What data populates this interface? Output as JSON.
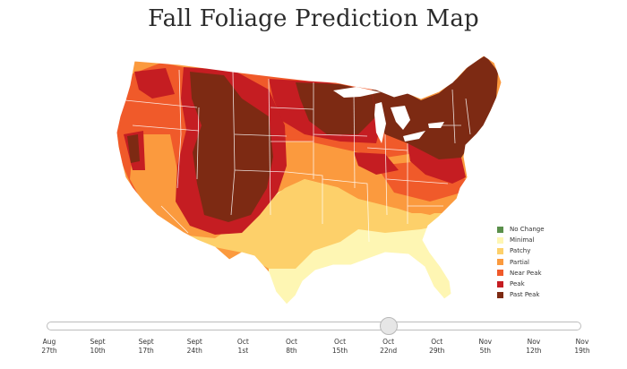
{
  "title": "Fall Foliage Prediction Map",
  "legend": [
    {
      "label": "No Change",
      "color": "#5a8f4b"
    },
    {
      "label": "Minimal",
      "color": "#fef6b3"
    },
    {
      "label": "Patchy",
      "color": "#fdd06a"
    },
    {
      "label": "Partial",
      "color": "#fb9a3e"
    },
    {
      "label": "Near Peak",
      "color": "#f05a2a"
    },
    {
      "label": "Peak",
      "color": "#c51d22"
    },
    {
      "label": "Past Peak",
      "color": "#7d2a13"
    }
  ],
  "timeline": {
    "selected_index": 7,
    "ticks": [
      {
        "line1": "Aug",
        "line2": "27th"
      },
      {
        "line1": "Sept",
        "line2": "10th"
      },
      {
        "line1": "Sept",
        "line2": "17th"
      },
      {
        "line1": "Sept",
        "line2": "24th"
      },
      {
        "line1": "Oct",
        "line2": "1st"
      },
      {
        "line1": "Oct",
        "line2": "8th"
      },
      {
        "line1": "Oct",
        "line2": "15th"
      },
      {
        "line1": "Oct",
        "line2": "22nd"
      },
      {
        "line1": "Oct",
        "line2": "29th"
      },
      {
        "line1": "Nov",
        "line2": "5th"
      },
      {
        "line1": "Nov",
        "line2": "12th"
      },
      {
        "line1": "Nov",
        "line2": "19th"
      }
    ]
  }
}
